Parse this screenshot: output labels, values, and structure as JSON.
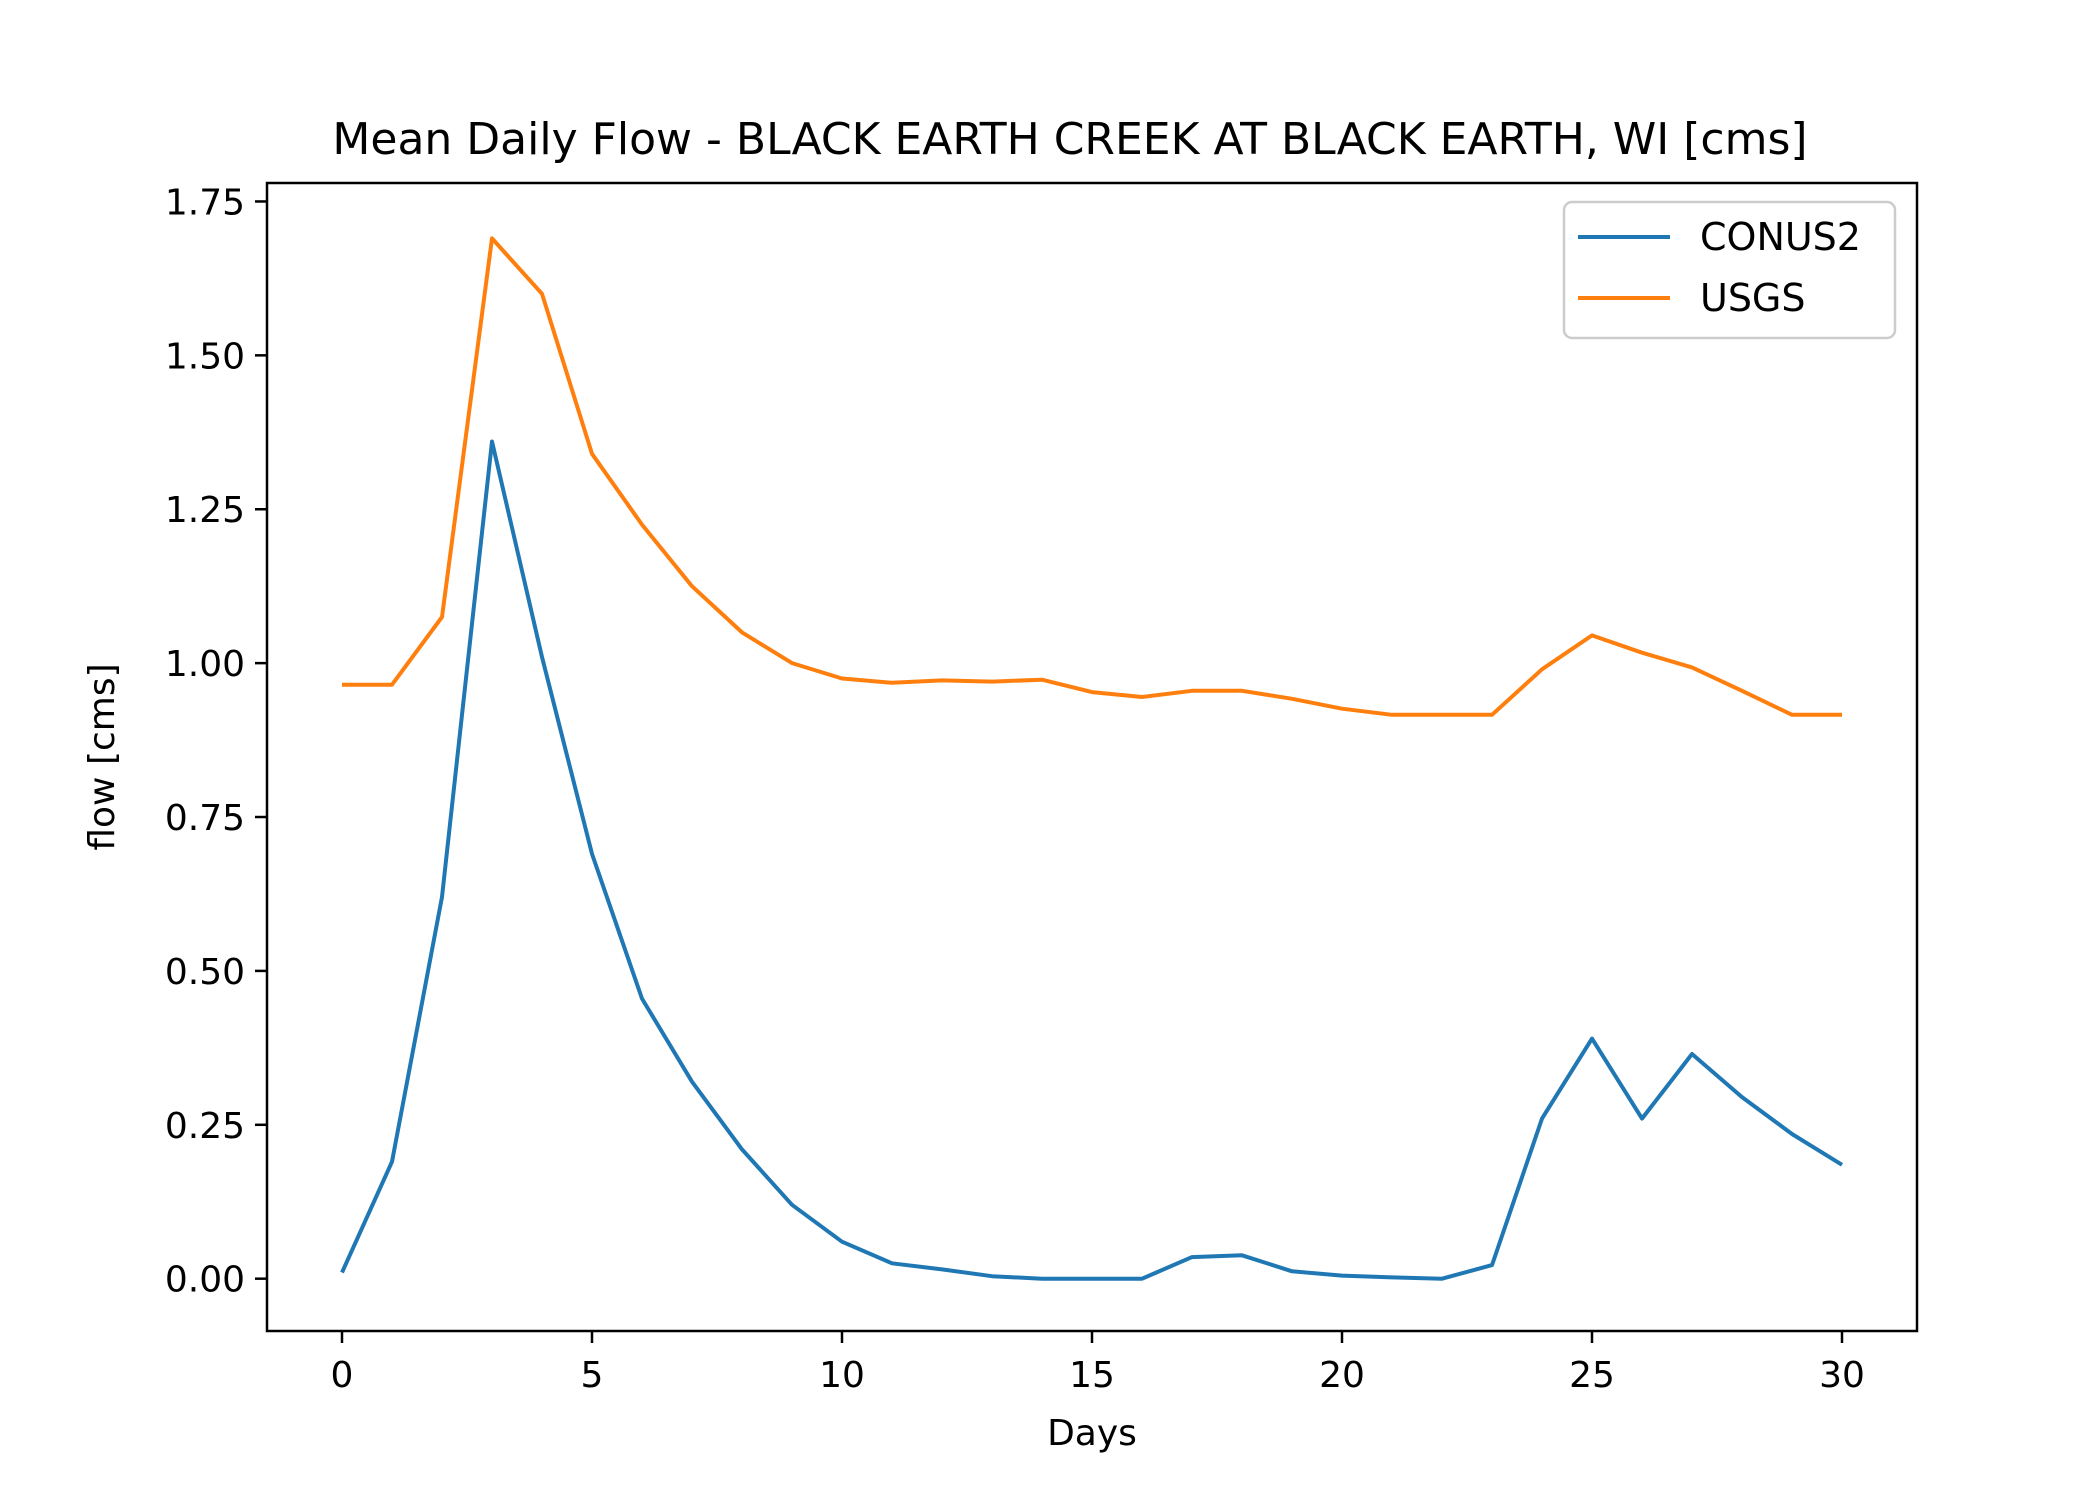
{
  "chart_data": {
    "type": "line",
    "title": "Mean Daily Flow - BLACK EARTH CREEK AT BLACK EARTH, WI [cms]",
    "xlabel": "Days",
    "ylabel": "flow [cms]",
    "xlim": [
      -1.5,
      31.5
    ],
    "ylim": [
      -0.085,
      1.78
    ],
    "xticks": [
      0,
      5,
      10,
      15,
      20,
      25,
      30
    ],
    "xtick_labels": [
      "0",
      "5",
      "10",
      "15",
      "20",
      "25",
      "30"
    ],
    "yticks": [
      0.0,
      0.25,
      0.5,
      0.75,
      1.0,
      1.25,
      1.5,
      1.75
    ],
    "ytick_labels": [
      "0.00",
      "0.25",
      "0.50",
      "0.75",
      "1.00",
      "1.25",
      "1.50",
      "1.75"
    ],
    "grid": false,
    "legend_position": "top-right",
    "x": [
      0,
      1,
      2,
      3,
      4,
      5,
      6,
      7,
      8,
      9,
      10,
      11,
      12,
      13,
      14,
      15,
      16,
      17,
      18,
      19,
      20,
      21,
      22,
      23,
      24,
      25,
      26,
      27,
      28,
      29,
      30
    ],
    "series": [
      {
        "name": "CONUS2",
        "color": "#1f77b4",
        "values": [
          0.01,
          0.19,
          0.62,
          1.36,
          1.01,
          0.69,
          0.455,
          0.32,
          0.21,
          0.12,
          0.06,
          0.025,
          0.015,
          0.004,
          0.0,
          0.0,
          0.0,
          0.035,
          0.038,
          0.012,
          0.005,
          0.002,
          0.0,
          0.022,
          0.26,
          0.39,
          0.26,
          0.365,
          0.295,
          0.235,
          0.185
        ]
      },
      {
        "name": "USGS",
        "color": "#ff7f0e",
        "values": [
          0.965,
          0.965,
          1.075,
          1.69,
          1.6,
          1.34,
          1.225,
          1.125,
          1.05,
          1.0,
          0.975,
          0.968,
          0.972,
          0.97,
          0.973,
          0.953,
          0.945,
          0.955,
          0.955,
          0.942,
          0.926,
          0.916,
          0.916,
          0.916,
          0.99,
          1.045,
          1.017,
          0.993,
          0.955,
          0.916,
          0.916
        ]
      }
    ]
  }
}
